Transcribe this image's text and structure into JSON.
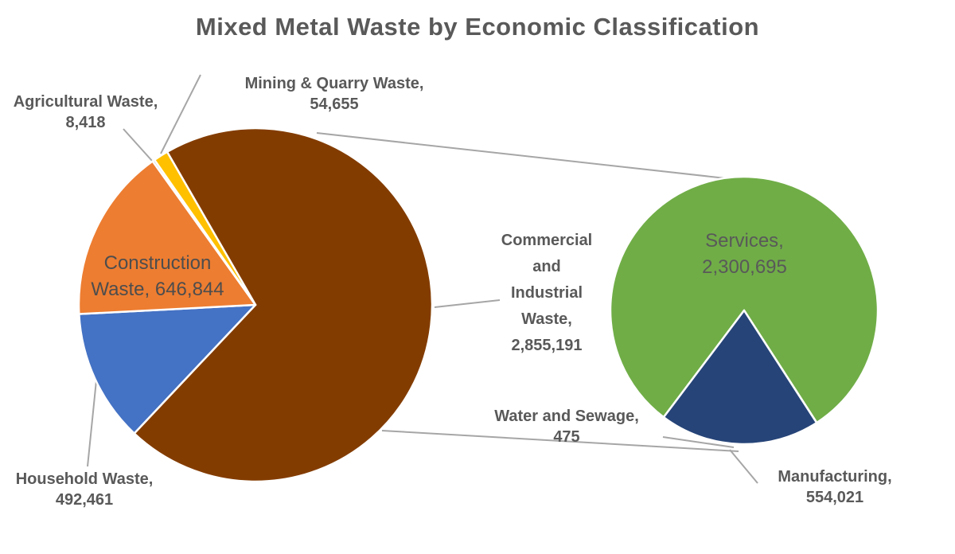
{
  "title": "Mixed Metal Waste by Economic Classification",
  "colors": {
    "text_gray": "#595959",
    "leader_line_gray": "#A6A6A6",
    "commercial_industrial_brown": "#833C00",
    "household_blue": "#4472C4",
    "construction_orange": "#ED7D31",
    "mining_yellow": "#FFC000",
    "agricultural_gray": "#A5A5A5",
    "services_green": "#70AD47",
    "manufacturing_navy": "#264478"
  },
  "chart_data": {
    "type": "pie",
    "variant": "pie-of-pie",
    "title": "Mixed Metal Waste by Economic Classification",
    "legend": "none",
    "data_labels": "category name and value, gray text with leader lines",
    "primary_pie": {
      "start_angle_deg": 330,
      "slices": [
        {
          "label": "Commercial and Industrial Waste",
          "value": 2855191,
          "color": "#833C00"
        },
        {
          "label": "Household Waste",
          "value": 492461,
          "color": "#4472C4"
        },
        {
          "label": "Construction Waste",
          "value": 646844,
          "color": "#ED7D31"
        },
        {
          "label": "Agricultural Waste",
          "value": 8418,
          "color": "#A5A5A5"
        },
        {
          "label": "Mining & Quarry Waste",
          "value": 54655,
          "color": "#FFC000"
        }
      ]
    },
    "secondary_pie": {
      "note": "breakdown of Commercial and Industrial Waste",
      "start_angle_deg": 217,
      "slices": [
        {
          "label": "Services",
          "value": 2300695,
          "color": "#70AD47"
        },
        {
          "label": "Water and Sewage",
          "value": 475,
          "color": "#A5A5A5"
        },
        {
          "label": "Manufacturing",
          "value": 554021,
          "color": "#264478"
        }
      ]
    }
  },
  "labels": {
    "agricultural": {
      "lines": [
        "Agricultural Waste,",
        "8,418"
      ]
    },
    "mining": {
      "lines": [
        "Mining & Quarry Waste,",
        "54,655"
      ]
    },
    "construction": {
      "lines": [
        "Construction",
        "Waste, 646,844"
      ]
    },
    "household": {
      "lines": [
        "Household Waste,",
        "492,461"
      ]
    },
    "commercial_industrial": {
      "lines": [
        "Commercial",
        "and",
        "Industrial",
        "Waste,",
        "2,855,191"
      ]
    },
    "water": {
      "lines": [
        "Water and Sewage,",
        "475"
      ]
    },
    "services": {
      "lines": [
        "Services,",
        "2,300,695"
      ]
    },
    "manufacturing": {
      "lines": [
        "Manufacturing,",
        "554,021"
      ]
    }
  }
}
